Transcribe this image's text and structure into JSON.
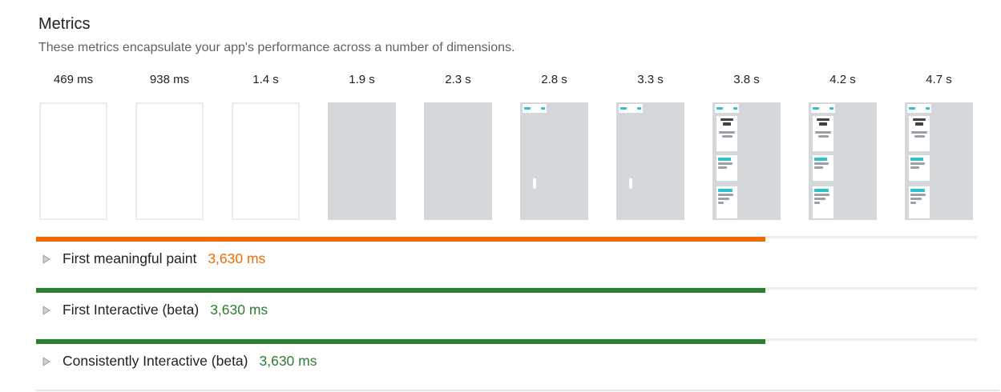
{
  "header": {
    "title": "Metrics",
    "subtitle": "These metrics encapsulate your app's performance across a number of dimensions."
  },
  "filmstrip": {
    "frames": [
      {
        "label": "469 ms",
        "stage": "blank-white"
      },
      {
        "label": "938 ms",
        "stage": "blank-white"
      },
      {
        "label": "1.4 s",
        "stage": "blank-white"
      },
      {
        "label": "1.9 s",
        "stage": "blank-gray"
      },
      {
        "label": "2.3 s",
        "stage": "blank-gray"
      },
      {
        "label": "2.8 s",
        "stage": "header-chip"
      },
      {
        "label": "3.3 s",
        "stage": "header-chip"
      },
      {
        "label": "3.8 s",
        "stage": "content"
      },
      {
        "label": "4.2 s",
        "stage": "content"
      },
      {
        "label": "4.7 s",
        "stage": "content"
      }
    ],
    "thumb_bg": "#d4d8da",
    "thumb_accent": "#2cc0c8"
  },
  "metrics": {
    "rows": [
      {
        "name": "First meaningful paint",
        "value": "3,630 ms",
        "color": "#ef6c00",
        "fill_pct": 77.5
      },
      {
        "name": "First Interactive (beta)",
        "value": "3,630 ms",
        "color": "#2e7d32",
        "fill_pct": 77.5
      },
      {
        "name": "Consistently Interactive (beta)",
        "value": "3,630 ms",
        "color": "#2e7d32",
        "fill_pct": 77.5
      }
    ],
    "track_color": "#ececec"
  }
}
